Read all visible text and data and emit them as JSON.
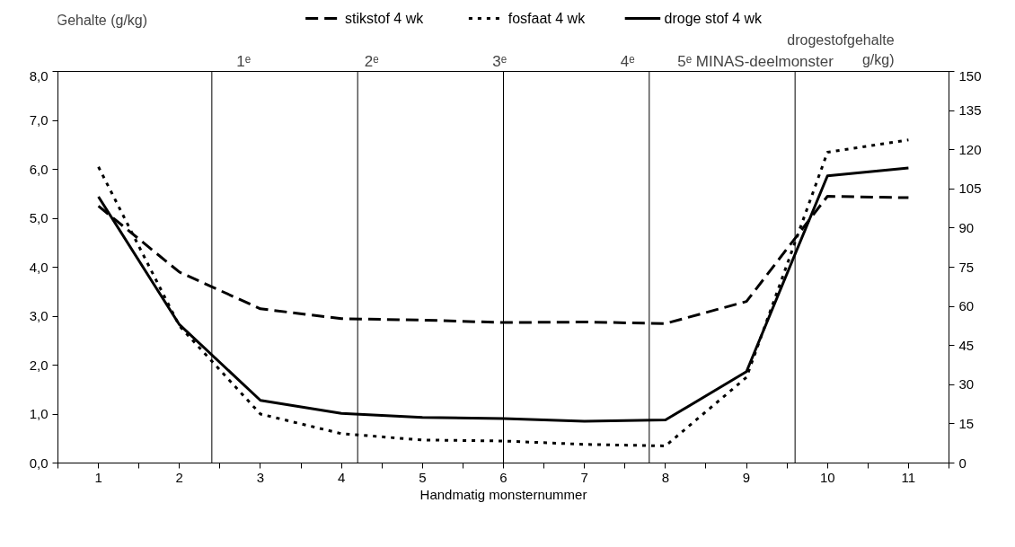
{
  "chart_data": {
    "type": "line",
    "ylabel": "Gehalte (g/kg)",
    "y2label": "drogestofgehalte\ng/kg)",
    "xlabel": "Handmatig monsternummer",
    "x": [
      1,
      2,
      3,
      4,
      5,
      6,
      7,
      8,
      9,
      10,
      11
    ],
    "series": [
      {
        "name": "stikstof 4 wk",
        "color": "#000000",
        "line_style": "dashed",
        "values": [
          5.25,
          3.9,
          3.15,
          2.95,
          2.92,
          2.87,
          2.88,
          2.85,
          3.3,
          5.45,
          5.42
        ]
      },
      {
        "name": "fosfaat 4 wk",
        "color": "#000000",
        "line_style": "dotted",
        "values": [
          6.05,
          2.8,
          1.0,
          0.6,
          0.47,
          0.45,
          0.38,
          0.35,
          1.75,
          6.35,
          6.6
        ]
      },
      {
        "name": "droge stof 4 wk",
        "color": "#000000",
        "line_style": "solid",
        "axis": "y2",
        "values": [
          102,
          53,
          24,
          19,
          17.5,
          17,
          16,
          16.5,
          35,
          110,
          113
        ]
      }
    ],
    "xlim": [
      0.5,
      11.5
    ],
    "xticks": [
      {
        "value": 0.5,
        "label": null
      },
      1,
      {
        "value": 1.5,
        "label": null
      },
      2,
      {
        "value": 2.5,
        "label": null
      },
      3,
      {
        "value": 3.5,
        "label": null
      },
      4,
      {
        "value": 4.5,
        "label": null
      },
      5,
      {
        "value": 5.5,
        "label": null
      },
      6,
      {
        "value": 6.5,
        "label": null
      },
      7,
      {
        "value": 7.5,
        "label": null
      },
      8,
      {
        "value": 8.5,
        "label": null
      },
      9,
      {
        "value": 9.5,
        "label": null
      },
      10,
      {
        "value": 10.5,
        "label": null
      },
      11,
      {
        "value": 11.5,
        "label": null
      }
    ],
    "ylim": [
      0,
      8
    ],
    "yticks": [
      {
        "value": 0,
        "label": "0,0"
      },
      {
        "value": 1,
        "label": "1,0"
      },
      {
        "value": 2,
        "label": "2,0"
      },
      {
        "value": 3,
        "label": "3,0"
      },
      {
        "value": 4,
        "label": "4,0"
      },
      {
        "value": 5,
        "label": "5,0"
      },
      {
        "value": 6,
        "label": "6,0"
      },
      {
        "value": 7,
        "label": "7,0"
      },
      {
        "value": 8,
        "label": "8,0"
      }
    ],
    "y2lim": [
      0,
      150
    ],
    "y2ticks": [
      0,
      15,
      30,
      45,
      60,
      75,
      90,
      105,
      120,
      135,
      150
    ],
    "ref_lines": [
      {
        "axis": "x",
        "value": 2.4,
        "label": "1ᵉ",
        "color": "#000000"
      },
      {
        "axis": "x",
        "value": 4.2,
        "label": "2ᵉ",
        "color": "#000000"
      },
      {
        "axis": "x",
        "value": 6.0,
        "label": "3ᵉ",
        "color": "#000000"
      },
      {
        "axis": "x",
        "value": 7.8,
        "label": "4ᵉ",
        "color": "#000000"
      },
      {
        "axis": "x",
        "value": 9.6,
        "label": "5ᵉ MINAS-deelmonster",
        "color": "#000000"
      }
    ],
    "grid": false,
    "legend": "top",
    "marker": "none"
  }
}
